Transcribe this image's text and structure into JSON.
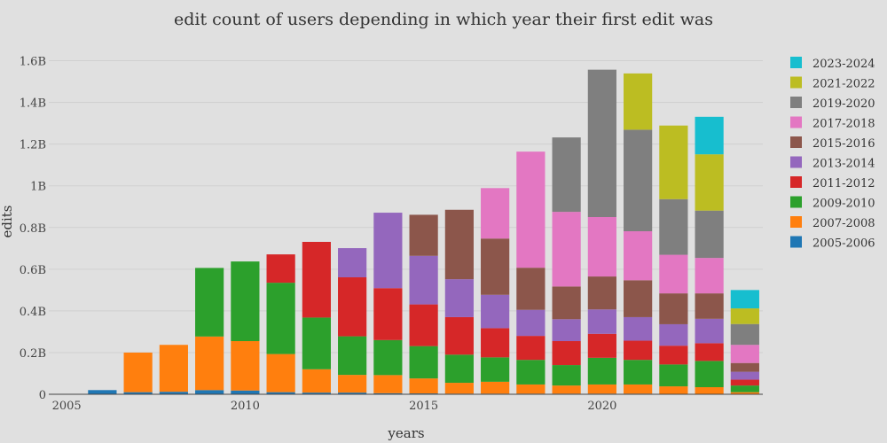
{
  "chart_data": {
    "type": "bar",
    "stacked": true,
    "title": "edit count of users depending in which year their first edit was",
    "xlabel": "years",
    "ylabel": "edits",
    "xlim": [
      2004.5,
      2024.5
    ],
    "ylim": [
      0,
      1700000000
    ],
    "x_ticks": [
      2005,
      2010,
      2015,
      2020
    ],
    "x_tick_labels": [
      "2005",
      "2010",
      "2015",
      "2020"
    ],
    "y_ticks": [
      0,
      200000000,
      400000000,
      600000000,
      800000000,
      1000000000,
      1200000000,
      1400000000,
      1600000000
    ],
    "y_tick_labels": [
      "0",
      "0.2B",
      "0.4B",
      "0.6B",
      "0.8B",
      "1B",
      "1.2B",
      "1.4B",
      "1.6B"
    ],
    "grid": true,
    "legend_position": "right",
    "x": [
      2005,
      2006,
      2007,
      2008,
      2009,
      2010,
      2011,
      2012,
      2013,
      2014,
      2015,
      2016,
      2017,
      2018,
      2019,
      2020,
      2021,
      2022,
      2023,
      2024
    ],
    "series": [
      {
        "name": "2005-2006",
        "color": "#1f77b4",
        "values": [
          1000000,
          20000000,
          10000000,
          12000000,
          20000000,
          18000000,
          10000000,
          8000000,
          8000000,
          5000000,
          4000000,
          3000000,
          3000000,
          3000000,
          3000000,
          3000000,
          3000000,
          2000000,
          2000000,
          1000000
        ]
      },
      {
        "name": "2007-2008",
        "color": "#ff7f0e",
        "values": [
          0,
          0,
          190000000,
          225000000,
          257000000,
          237000000,
          183000000,
          112000000,
          85000000,
          87000000,
          72000000,
          52000000,
          57000000,
          44000000,
          39000000,
          44000000,
          44000000,
          36000000,
          32000000,
          9000000
        ]
      },
      {
        "name": "2009-2010",
        "color": "#2ca02c",
        "values": [
          0,
          0,
          0,
          0,
          329000000,
          382000000,
          342000000,
          248000000,
          185000000,
          168000000,
          155000000,
          135000000,
          117000000,
          118000000,
          98000000,
          128000000,
          118000000,
          105000000,
          126000000,
          32000000
        ]
      },
      {
        "name": "2011-2012",
        "color": "#d62728",
        "values": [
          0,
          0,
          0,
          0,
          0,
          0,
          136000000,
          363000000,
          283000000,
          249000000,
          200000000,
          180000000,
          140000000,
          115000000,
          115000000,
          115000000,
          92000000,
          90000000,
          85000000,
          28000000
        ]
      },
      {
        "name": "2013-2014",
        "color": "#9467bd",
        "values": [
          0,
          0,
          0,
          0,
          0,
          0,
          0,
          0,
          140000000,
          362000000,
          233000000,
          182000000,
          160000000,
          125000000,
          105000000,
          117000000,
          113000000,
          103000000,
          117000000,
          38000000
        ]
      },
      {
        "name": "2015-2016",
        "color": "#8c564b",
        "values": [
          0,
          0,
          0,
          0,
          0,
          0,
          0,
          0,
          0,
          0,
          197000000,
          333000000,
          270000000,
          202000000,
          157000000,
          158000000,
          177000000,
          148000000,
          122000000,
          42000000
        ]
      },
      {
        "name": "2017-2018",
        "color": "#e377c2",
        "values": [
          0,
          0,
          0,
          0,
          0,
          0,
          0,
          0,
          0,
          0,
          0,
          0,
          242000000,
          557000000,
          358000000,
          285000000,
          235000000,
          185000000,
          170000000,
          87000000
        ]
      },
      {
        "name": "2019-2020",
        "color": "#7f7f7f",
        "values": [
          0,
          0,
          0,
          0,
          0,
          0,
          0,
          0,
          0,
          0,
          0,
          0,
          0,
          0,
          357000000,
          707000000,
          487000000,
          267000000,
          227000000,
          100000000
        ]
      },
      {
        "name": "2021-2022",
        "color": "#bcbd22",
        "values": [
          0,
          0,
          0,
          0,
          0,
          0,
          0,
          0,
          0,
          0,
          0,
          0,
          0,
          0,
          0,
          0,
          270000000,
          353000000,
          270000000,
          75000000
        ]
      },
      {
        "name": "2023-2024",
        "color": "#17becf",
        "values": [
          0,
          0,
          0,
          0,
          0,
          0,
          0,
          0,
          0,
          0,
          0,
          0,
          0,
          0,
          0,
          0,
          0,
          0,
          180000000,
          88000000
        ]
      }
    ]
  }
}
